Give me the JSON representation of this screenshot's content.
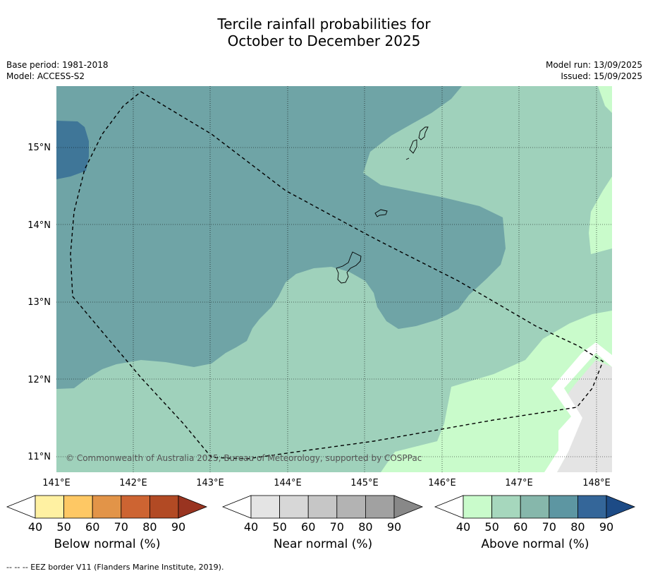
{
  "title_line1": "Tercile rainfall probabilities for",
  "title_line2": "October to December 2025",
  "meta_left": [
    "Base period: 1981-2018",
    "Model: ACCESS-S2"
  ],
  "meta_right": [
    "Model run: 13/09/2025",
    "Issued: 15/09/2025"
  ],
  "map": {
    "lon_labels": [
      "141°E",
      "142°E",
      "143°E",
      "144°E",
      "145°E",
      "146°E",
      "147°E",
      "148°E"
    ],
    "lat_labels": [
      "15°N",
      "14°N",
      "13°N",
      "12°N",
      "11°N"
    ],
    "copyright": "© Commonwealth of Australia 2025, Bureau of Meteorology, supported by COSPPac",
    "colors": {
      "above_60_70": "#9fd1bb",
      "above_70_80": "#6fa4a6",
      "above_80_90": "#3f7698",
      "above_40_50": "#c9fbcb",
      "near_40_50": "#e4e4e4",
      "border": "#000000"
    }
  },
  "colorbars": [
    {
      "label": "Below normal (%)",
      "ticks": [
        "40",
        "50",
        "60",
        "70",
        "80",
        "90"
      ],
      "colors": [
        "#ffffff",
        "#fff1a2",
        "#fec864",
        "#e29448",
        "#cd6432",
        "#b24a24",
        "#993420"
      ]
    },
    {
      "label": "Near normal (%)",
      "ticks": [
        "40",
        "50",
        "60",
        "70",
        "80",
        "90"
      ],
      "colors": [
        "#ffffff",
        "#e4e4e4",
        "#d7d7d7",
        "#c6c6c6",
        "#b3b3b3",
        "#a1a1a1",
        "#888888"
      ]
    },
    {
      "label": "Above normal (%)",
      "ticks": [
        "40",
        "50",
        "60",
        "70",
        "80",
        "90"
      ],
      "colors": [
        "#ffffff",
        "#c9fbcb",
        "#a6d7bd",
        "#86b7ab",
        "#5d96a2",
        "#346699",
        "#1d4b86"
      ]
    }
  ],
  "footnote": "--  --  -- EEZ border V11 (Flanders Marine Institute, 2019)."
}
